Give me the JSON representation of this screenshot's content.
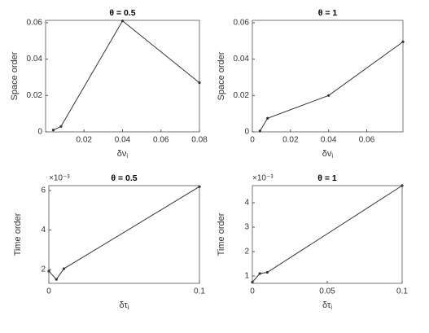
{
  "chart_data": [
    {
      "type": "line",
      "title": "θ = 0.5",
      "xlabel": "δν",
      "xlabel_subscript": "i",
      "ylabel": "Space order",
      "x": [
        0.004,
        0.008,
        0.04,
        0.08
      ],
      "values": [
        0.001,
        0.003,
        0.061,
        0.027
      ],
      "color": "#333333",
      "xlim": [
        0,
        0.08
      ],
      "xticks": [
        0.02,
        0.04,
        0.06,
        0.08
      ],
      "ylim": [
        0,
        0.0613
      ],
      "yticks": [
        0,
        0.02,
        0.04,
        0.06
      ]
    },
    {
      "type": "line",
      "title": "θ = 1",
      "xlabel": "δν",
      "xlabel_subscript": "i",
      "ylabel": "Space order",
      "x": [
        0.004,
        0.008,
        0.04,
        0.079
      ],
      "values": [
        0.0005,
        0.0075,
        0.02,
        0.0495
      ],
      "color": "#333333",
      "xlim": [
        0,
        0.079
      ],
      "xticks": [
        0,
        0.02,
        0.04,
        0.06
      ],
      "ylim": [
        0,
        0.0613
      ],
      "yticks": [
        0,
        0.02,
        0.04,
        0.06
      ]
    },
    {
      "type": "line",
      "title": "θ = 0.5",
      "xlabel": "δτ",
      "xlabel_subscript": "i",
      "ylabel": "Time order",
      "y_exponent": "×10⁻³",
      "x": [
        0,
        0.005,
        0.01,
        0.1
      ],
      "values": [
        1.92,
        1.5,
        2.04,
        6.2
      ],
      "color": "#333333",
      "xlim": [
        0,
        0.1
      ],
      "xticks": [
        0,
        0.1
      ],
      "ylim": [
        1.3,
        6.25
      ],
      "yticks": [
        2,
        4,
        6
      ]
    },
    {
      "type": "line",
      "title": "θ = 1",
      "xlabel": "δτ",
      "xlabel_subscript": "i",
      "ylabel": "Time order",
      "y_exponent": "×10⁻³",
      "x": [
        0,
        0.005,
        0.01,
        0.1
      ],
      "values": [
        0.75,
        1.1,
        1.15,
        4.7
      ],
      "color": "#333333",
      "xlim": [
        0,
        0.1
      ],
      "xticks": [
        0,
        0.05,
        0.1
      ],
      "ylim": [
        0.7,
        4.7
      ],
      "yticks": [
        1,
        2,
        3,
        4
      ]
    }
  ]
}
